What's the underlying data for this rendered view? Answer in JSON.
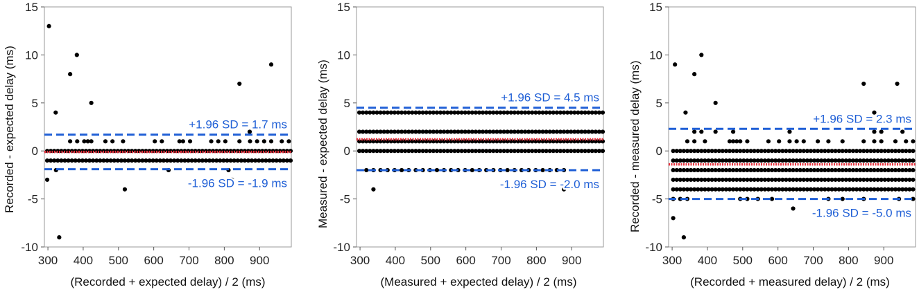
{
  "chart_data": [
    {
      "type": "scatter",
      "title": "",
      "xlabel": "(Recorded + expected delay) / 2 (ms)",
      "ylabel": "Recorded - expected delay (ms)",
      "xlim": [
        290,
        990
      ],
      "ylim": [
        -10,
        15
      ],
      "xticks": [
        "300",
        "400",
        "500",
        "600",
        "700",
        "800",
        "900"
      ],
      "yticks": [
        "-10",
        "-5",
        "0",
        "5",
        "10",
        "15"
      ],
      "grid": false,
      "mean_line": {
        "value": -0.1,
        "color": "#e8303c"
      },
      "limit_lines": [
        {
          "value": 1.7,
          "label": "+1.96 SD = 1.7 ms",
          "color": "#1f5fd6"
        },
        {
          "value": -1.9,
          "label": "-1.96 SD = -1.9 ms",
          "color": "#1f5fd6"
        }
      ],
      "bands": [
        {
          "y": 0,
          "x_range": [
            298,
            988
          ]
        },
        {
          "y": -1,
          "x_range": [
            298,
            988
          ]
        }
      ],
      "points": [
        [
          303,
          13
        ],
        [
          322,
          4
        ],
        [
          363,
          8
        ],
        [
          382,
          10
        ],
        [
          423,
          5
        ],
        [
          843,
          7
        ],
        [
          933,
          9
        ],
        [
          298,
          -3
        ],
        [
          332,
          -9
        ],
        [
          518,
          -4
        ],
        [
          642,
          -2
        ],
        [
          323,
          -2
        ],
        [
          812,
          -2
        ],
        [
          822,
          -3
        ],
        [
          872,
          2
        ],
        [
          363,
          1
        ],
        [
          383,
          1
        ],
        [
          403,
          1
        ],
        [
          413,
          1
        ],
        [
          423,
          1
        ],
        [
          463,
          1
        ],
        [
          483,
          1
        ],
        [
          513,
          1
        ],
        [
          603,
          1
        ],
        [
          623,
          1
        ],
        [
          673,
          1
        ],
        [
          683,
          1
        ],
        [
          703,
          1
        ],
        [
          763,
          1
        ],
        [
          783,
          1
        ],
        [
          803,
          1
        ],
        [
          843,
          1
        ],
        [
          873,
          1
        ],
        [
          893,
          1
        ],
        [
          913,
          1
        ],
        [
          933,
          1
        ],
        [
          963,
          1
        ],
        [
          983,
          1
        ]
      ]
    },
    {
      "type": "scatter",
      "title": "",
      "xlabel": "(Measured + expected delay) / 2 (ms)",
      "ylabel": "Measured - expected delay (ms)",
      "xlim": [
        290,
        990
      ],
      "ylim": [
        -10,
        15
      ],
      "xticks": [
        "300",
        "400",
        "500",
        "600",
        "700",
        "800",
        "900"
      ],
      "yticks": [
        "-10",
        "-5",
        "0",
        "5",
        "10",
        "15"
      ],
      "grid": false,
      "mean_line": {
        "value": 1.2,
        "color": "#e8303c"
      },
      "limit_lines": [
        {
          "value": 4.5,
          "label": "+1.96 SD = 4.5 ms",
          "color": "#1f5fd6"
        },
        {
          "value": -2.0,
          "label": "-1.96 SD = -2.0 ms",
          "color": "#1f5fd6"
        }
      ],
      "bands": [
        {
          "y": 4,
          "x_range": [
            298,
            988
          ]
        },
        {
          "y": 2,
          "x_range": [
            298,
            988
          ]
        },
        {
          "y": 1,
          "x_range": [
            298,
            988
          ]
        },
        {
          "y": 0,
          "x_range": [
            298,
            988
          ]
        }
      ],
      "points": [
        [
          318,
          -2
        ],
        [
          338,
          -2
        ],
        [
          358,
          -2
        ],
        [
          378,
          -2
        ],
        [
          398,
          -2
        ],
        [
          418,
          -2
        ],
        [
          438,
          -2
        ],
        [
          458,
          -2
        ],
        [
          478,
          -2
        ],
        [
          498,
          -2
        ],
        [
          518,
          -2
        ],
        [
          538,
          -2
        ],
        [
          558,
          -2
        ],
        [
          578,
          -2
        ],
        [
          598,
          -2
        ],
        [
          618,
          -2
        ],
        [
          638,
          -2
        ],
        [
          658,
          -2
        ],
        [
          678,
          -2
        ],
        [
          698,
          -2
        ],
        [
          718,
          -2
        ],
        [
          738,
          -2
        ],
        [
          758,
          -2
        ],
        [
          778,
          -2
        ],
        [
          798,
          -2
        ],
        [
          818,
          -2
        ],
        [
          838,
          -2
        ],
        [
          858,
          -2
        ],
        [
          878,
          -2
        ],
        [
          338,
          -4
        ],
        [
          878,
          -4
        ]
      ]
    },
    {
      "type": "scatter",
      "title": "",
      "xlabel": "(Recorded + measured delay) / 2 (ms)",
      "ylabel": "Recorded - measured delay (ms)",
      "xlim": [
        290,
        990
      ],
      "ylim": [
        -10,
        15
      ],
      "xticks": [
        "300",
        "400",
        "500",
        "600",
        "700",
        "800",
        "900"
      ],
      "yticks": [
        "-10",
        "-5",
        "0",
        "5",
        "10",
        "15"
      ],
      "grid": false,
      "mean_line": {
        "value": -1.4,
        "color": "#e8303c"
      },
      "limit_lines": [
        {
          "value": 2.3,
          "label": "+1.96 SD = 2.3 ms",
          "color": "#1f5fd6"
        },
        {
          "value": -5.0,
          "label": "-1.96 SD = -5.0 ms",
          "color": "#1f5fd6"
        }
      ],
      "bands": [
        {
          "y": 0,
          "x_range": [
            303,
            988
          ]
        },
        {
          "y": -1,
          "x_range": [
            303,
            988
          ]
        },
        {
          "y": -2,
          "x_range": [
            303,
            988
          ]
        },
        {
          "y": -3,
          "x_range": [
            303,
            988
          ]
        },
        {
          "y": -4,
          "x_range": [
            303,
            988
          ]
        }
      ],
      "points": [
        [
          308,
          9
        ],
        [
          338,
          4
        ],
        [
          363,
          8
        ],
        [
          383,
          10
        ],
        [
          423,
          5
        ],
        [
          843,
          7
        ],
        [
          938,
          7
        ],
        [
          873,
          4
        ],
        [
          303,
          -7
        ],
        [
          333,
          -9
        ],
        [
          643,
          -6
        ],
        [
          303,
          -5
        ],
        [
          323,
          -5
        ],
        [
          343,
          -5
        ],
        [
          493,
          -5
        ],
        [
          513,
          -5
        ],
        [
          543,
          -5
        ],
        [
          583,
          -5
        ],
        [
          743,
          -5
        ],
        [
          783,
          -5
        ],
        [
          843,
          -5
        ],
        [
          943,
          -5
        ],
        [
          983,
          -5
        ],
        [
          343,
          1
        ],
        [
          363,
          1
        ],
        [
          393,
          1
        ],
        [
          463,
          1
        ],
        [
          473,
          1
        ],
        [
          483,
          1
        ],
        [
          493,
          1
        ],
        [
          513,
          1
        ],
        [
          573,
          1
        ],
        [
          603,
          1
        ],
        [
          633,
          1
        ],
        [
          653,
          1
        ],
        [
          673,
          1
        ],
        [
          713,
          1
        ],
        [
          743,
          1
        ],
        [
          783,
          1
        ],
        [
          843,
          1
        ],
        [
          873,
          1
        ],
        [
          893,
          1
        ],
        [
          933,
          1
        ],
        [
          963,
          1
        ],
        [
          983,
          1
        ],
        [
          363,
          2
        ],
        [
          383,
          2
        ],
        [
          423,
          2
        ],
        [
          473,
          2
        ],
        [
          633,
          2
        ],
        [
          873,
          2
        ],
        [
          893,
          2
        ],
        [
          953,
          2
        ]
      ]
    }
  ]
}
